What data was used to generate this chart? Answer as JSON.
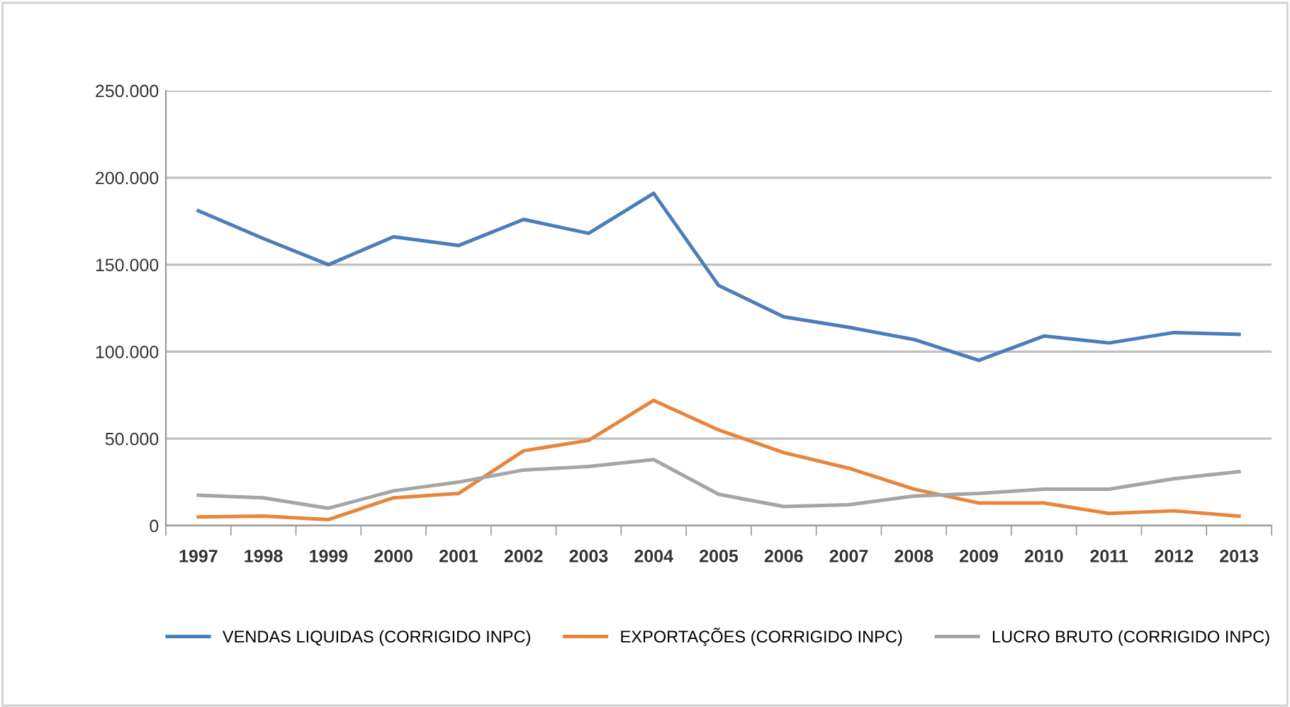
{
  "chart_data": {
    "type": "line",
    "categories": [
      "1997",
      "1998",
      "1999",
      "2000",
      "2001",
      "2002",
      "2003",
      "2004",
      "2005",
      "2006",
      "2007",
      "2008",
      "2009",
      "2010",
      "2011",
      "2012",
      "2013"
    ],
    "series": [
      {
        "name": "VENDAS LIQUIDAS (CORRIGIDO INPC)",
        "color": "#4a7ebb",
        "values": [
          181000,
          165000,
          150000,
          166000,
          161000,
          176000,
          168000,
          191000,
          138000,
          120000,
          114000,
          107000,
          95000,
          109000,
          105000,
          111000,
          110000
        ]
      },
      {
        "name": "EXPORTAÇÕES (CORRIGIDO INPC)",
        "color": "#e8853d",
        "values": [
          5000,
          5500,
          3500,
          16000,
          18500,
          43000,
          49000,
          72000,
          55000,
          42000,
          33000,
          21000,
          13000,
          13000,
          7000,
          8500,
          5500
        ]
      },
      {
        "name": "LUCRO BRUTO (CORRIGIDO INPC)",
        "color": "#a5a5a5",
        "values": [
          17500,
          16000,
          10000,
          20000,
          25000,
          32000,
          34000,
          38000,
          18000,
          11000,
          12000,
          17000,
          18500,
          21000,
          21000,
          27000,
          31000
        ]
      }
    ],
    "ylim": [
      0,
      250000
    ],
    "yticks": [
      {
        "value": 0,
        "label": "0"
      },
      {
        "value": 50000,
        "label": "50.000"
      },
      {
        "value": 100000,
        "label": "100.000"
      },
      {
        "value": 150000,
        "label": "150.000"
      },
      {
        "value": 200000,
        "label": "200.000"
      },
      {
        "value": 250000,
        "label": "250.000"
      }
    ],
    "grid": "y",
    "legend": "bottom",
    "marker": "none",
    "line_style": "solid"
  }
}
